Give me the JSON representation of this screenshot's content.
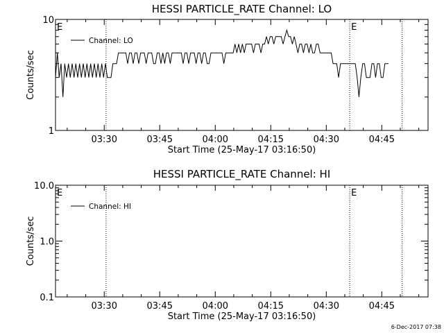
{
  "chart_data": [
    {
      "type": "line",
      "title": "HESSI PARTICLE_RATE Channel: LO",
      "xlabel": "Start Time (25-May-17 03:16:50)",
      "ylabel": "Counts/sec",
      "yscale": "log",
      "ylim": [
        1,
        10
      ],
      "y_tick_labels": [
        "1",
        "10"
      ],
      "x_tick_labels": [
        "03:30",
        "03:45",
        "04:00",
        "04:15",
        "04:30",
        "04:45"
      ],
      "xlim": [
        "03:16:50",
        "04:57:30"
      ],
      "vertical_markers": [
        {
          "x": "03:30:30",
          "label": ""
        },
        {
          "x": "04:36:20",
          "label": "E"
        },
        {
          "x": "04:50:30",
          "label": ""
        }
      ],
      "corner_label": "E",
      "legend_position": "top-left",
      "series": [
        {
          "name": "Channel: LO",
          "step_minutes": 0.5,
          "start": "03:16:50",
          "values": [
            3,
            5,
            3,
            4,
            2,
            4,
            3,
            4,
            3,
            4,
            3,
            4,
            3,
            4,
            3,
            4,
            3,
            4,
            3,
            4,
            3,
            4,
            3,
            4,
            3,
            4,
            3,
            4,
            3,
            3,
            3,
            4,
            4,
            4,
            5,
            5,
            5,
            5,
            5,
            4,
            5,
            5,
            4,
            5,
            5,
            4,
            5,
            5,
            5,
            4,
            5,
            5,
            5,
            4,
            4,
            5,
            5,
            4,
            5,
            4,
            5,
            5,
            4,
            5,
            5,
            5,
            5,
            5,
            5,
            4,
            5,
            5,
            4,
            5,
            5,
            5,
            4,
            5,
            5,
            4,
            5,
            5,
            4,
            4,
            5,
            5,
            5,
            5,
            5,
            5,
            5,
            4,
            5,
            5,
            5,
            5,
            5,
            6,
            5,
            6,
            5,
            6,
            5,
            6,
            6,
            6,
            6,
            5,
            6,
            6,
            6,
            5,
            6,
            6,
            7,
            6,
            7,
            7,
            6,
            7,
            7,
            7,
            7,
            6,
            7,
            8,
            7,
            7,
            6,
            7,
            6,
            5,
            6,
            6,
            5,
            6,
            6,
            5,
            6,
            5,
            5,
            6,
            6,
            5,
            5,
            5,
            5,
            5,
            5,
            5,
            4,
            4,
            4,
            3,
            4,
            4,
            4,
            4,
            4,
            4,
            4,
            4,
            4,
            3,
            2,
            3,
            4,
            4,
            3,
            3,
            3,
            4,
            4,
            3,
            4,
            4,
            3,
            3,
            4,
            4,
            4
          ]
        }
      ]
    },
    {
      "type": "line",
      "title": "HESSI PARTICLE_RATE Channel: HI",
      "xlabel": "Start Time (25-May-17 03:16:50)",
      "ylabel": "Counts/sec",
      "yscale": "log",
      "ylim": [
        0.1,
        10
      ],
      "y_tick_labels": [
        "0.1",
        "1.0",
        "10.0"
      ],
      "x_tick_labels": [
        "03:30",
        "03:45",
        "04:00",
        "04:15",
        "04:30",
        "04:45"
      ],
      "xlim": [
        "03:16:50",
        "04:57:30"
      ],
      "vertical_markers": [
        {
          "x": "03:30:30",
          "label": ""
        },
        {
          "x": "04:36:20",
          "label": "E"
        },
        {
          "x": "04:50:30",
          "label": ""
        }
      ],
      "corner_label": "E",
      "legend_position": "top-left",
      "series": [
        {
          "name": "Channel: HI",
          "values": []
        }
      ]
    }
  ],
  "footer_stamp": "6-Dec-2017 07:38"
}
